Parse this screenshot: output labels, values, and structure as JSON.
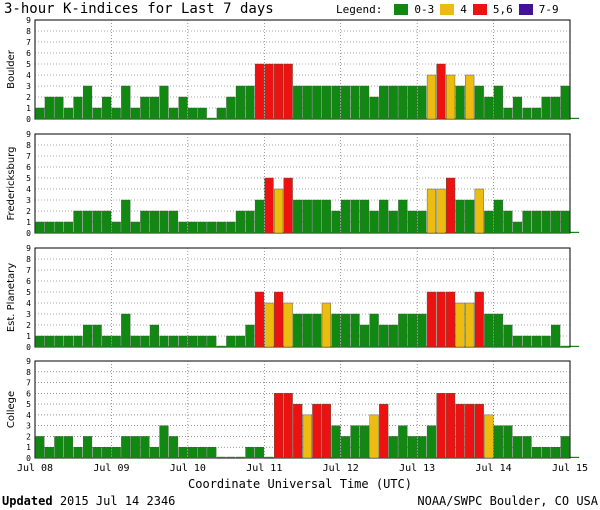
{
  "header": {
    "title": "3-hour K-indices for Last 7 days",
    "legend_label": "Legend:",
    "legend": [
      {
        "label": "0-3",
        "color": "#118811"
      },
      {
        "label": "4",
        "color": "#eebb11"
      },
      {
        "label": "5,6",
        "color": "#ee1111"
      },
      {
        "label": "7-9",
        "color": "#441199"
      }
    ]
  },
  "footer": {
    "updated_label": "Updated",
    "updated_value": "2015 Jul 14 2346",
    "credit": "NOAA/SWPC Boulder, CO USA",
    "xlabel": "Coordinate Universal Time (UTC)"
  },
  "chart_data": {
    "type": "bar",
    "title": "3-hour K-indices for Last 7 days",
    "xlabel": "Coordinate Universal Time (UTC)",
    "ylim": [
      0,
      9
    ],
    "yticks": [
      0,
      1,
      2,
      3,
      4,
      5,
      6,
      7,
      8,
      9
    ],
    "x_tick_labels": [
      "Jul 08",
      "Jul 09",
      "Jul 10",
      "Jul 11",
      "Jul 12",
      "Jul 13",
      "Jul 14",
      "Jul 15"
    ],
    "bins_per_day": 8,
    "color_scale": {
      "0-3": "#118811",
      "4": "#eebb11",
      "5,6": "#ee1111",
      "7-9": "#441199"
    },
    "series": [
      {
        "name": "Boulder",
        "values": [
          1,
          2,
          2,
          1,
          2,
          3,
          1,
          2,
          1,
          3,
          1,
          2,
          2,
          3,
          1,
          2,
          1,
          1,
          0,
          1,
          2,
          3,
          3,
          5,
          5,
          5,
          5,
          3,
          3,
          3,
          3,
          3,
          3,
          3,
          3,
          2,
          3,
          3,
          3,
          3,
          3,
          4,
          5,
          4,
          3,
          4,
          3,
          2,
          3,
          1,
          2,
          1,
          1,
          2,
          2,
          3,
          0
        ]
      },
      {
        "name": "Fredericksburg",
        "values": [
          1,
          1,
          1,
          1,
          2,
          2,
          2,
          2,
          1,
          3,
          1,
          2,
          2,
          2,
          2,
          1,
          1,
          1,
          1,
          1,
          1,
          2,
          2,
          3,
          5,
          4,
          5,
          3,
          3,
          3,
          3,
          2,
          3,
          3,
          3,
          2,
          3,
          2,
          3,
          2,
          2,
          4,
          4,
          5,
          3,
          3,
          4,
          2,
          3,
          2,
          1,
          2,
          2,
          2,
          2,
          2,
          0
        ]
      },
      {
        "name": "Est. Planetary",
        "values": [
          1,
          1,
          1,
          1,
          1,
          2,
          2,
          1,
          1,
          3,
          1,
          1,
          2,
          1,
          1,
          1,
          1,
          1,
          1,
          0,
          1,
          1,
          2,
          5,
          4,
          5,
          4,
          3,
          3,
          3,
          4,
          3,
          3,
          3,
          2,
          3,
          2,
          2,
          3,
          3,
          3,
          5,
          5,
          5,
          4,
          4,
          5,
          3,
          3,
          2,
          1,
          1,
          1,
          1,
          2,
          0,
          0
        ]
      },
      {
        "name": "College",
        "values": [
          2,
          1,
          2,
          2,
          1,
          2,
          1,
          1,
          1,
          2,
          2,
          2,
          1,
          3,
          2,
          1,
          1,
          1,
          1,
          0,
          0,
          0,
          1,
          1,
          0,
          6,
          6,
          5,
          4,
          5,
          5,
          3,
          2,
          3,
          3,
          4,
          5,
          2,
          3,
          2,
          2,
          3,
          6,
          6,
          5,
          5,
          5,
          4,
          3,
          3,
          2,
          2,
          1,
          1,
          1,
          2,
          0
        ]
      }
    ]
  }
}
